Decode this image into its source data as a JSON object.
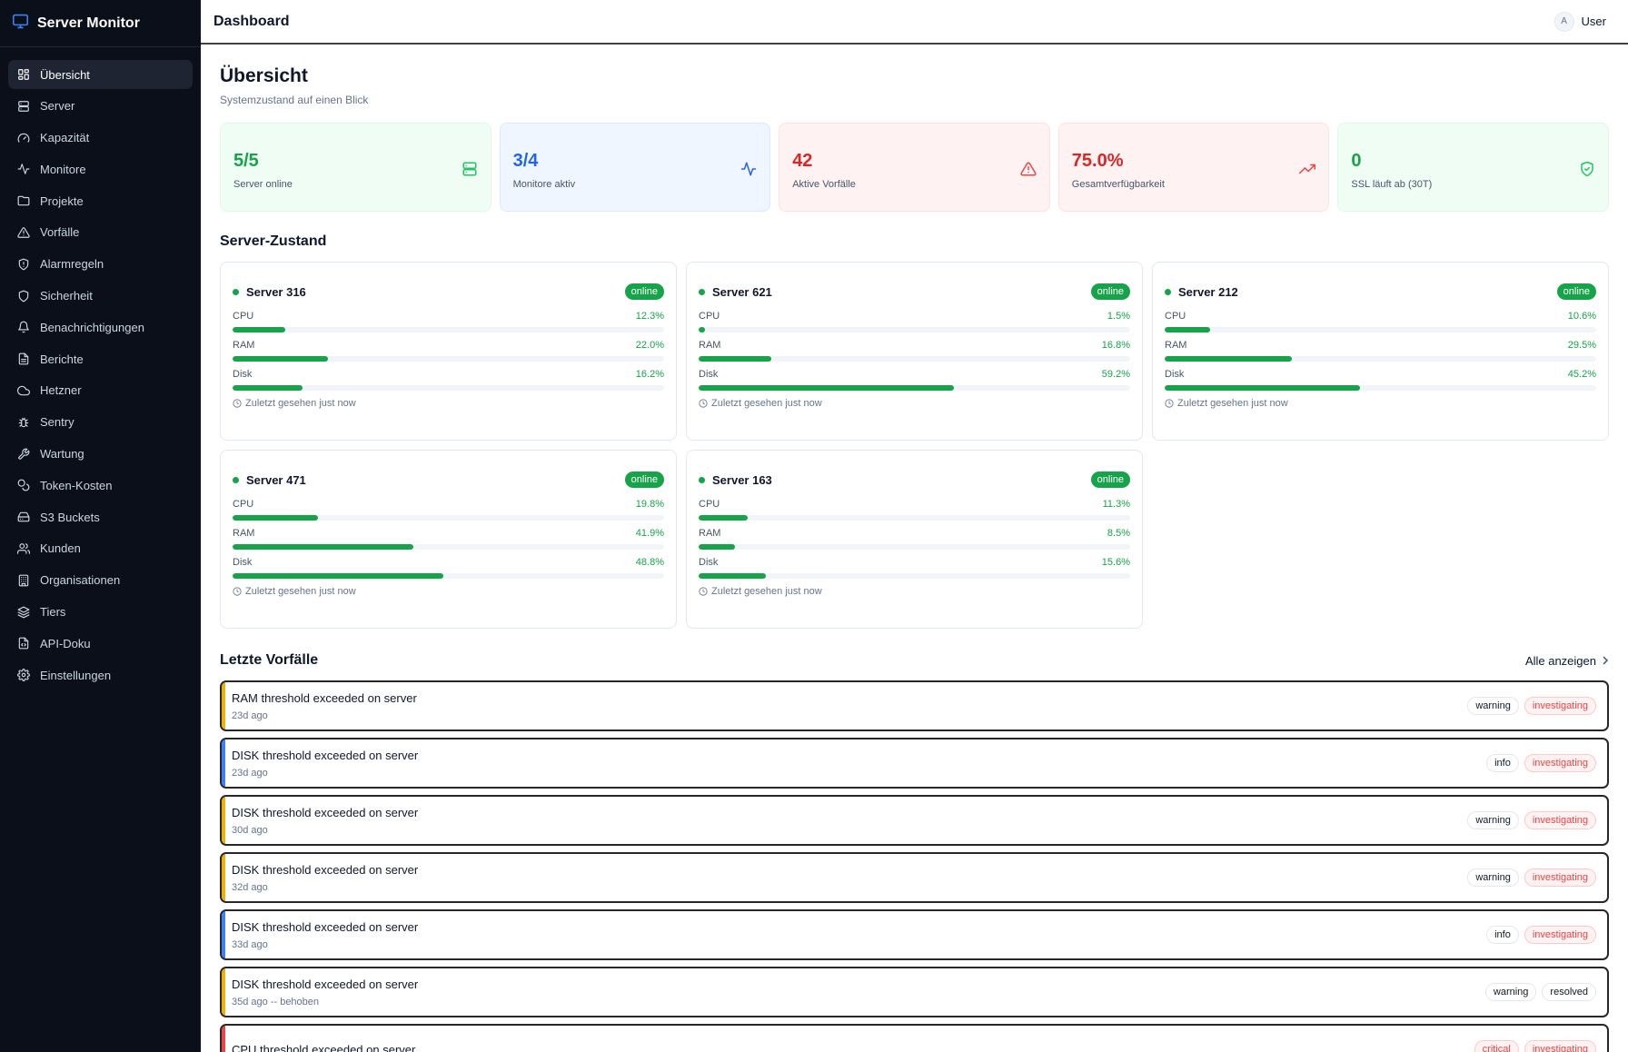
{
  "app": {
    "title": "Server Monitor"
  },
  "sidebar": {
    "items": [
      {
        "label": "Übersicht",
        "icon": "grid-icon",
        "active": true
      },
      {
        "label": "Server",
        "icon": "server-icon"
      },
      {
        "label": "Kapazität",
        "icon": "gauge-icon"
      },
      {
        "label": "Monitore",
        "icon": "activity-icon"
      },
      {
        "label": "Projekte",
        "icon": "folder-icon"
      },
      {
        "label": "Vorfälle",
        "icon": "alert-triangle-icon"
      },
      {
        "label": "Alarmregeln",
        "icon": "shield-alert-icon"
      },
      {
        "label": "Sicherheit",
        "icon": "shield-icon"
      },
      {
        "label": "Benachrichtigungen",
        "icon": "bell-icon"
      },
      {
        "label": "Berichte",
        "icon": "file-text-icon"
      },
      {
        "label": "Hetzner",
        "icon": "cloud-icon"
      },
      {
        "label": "Sentry",
        "icon": "bug-icon"
      },
      {
        "label": "Wartung",
        "icon": "wrench-icon"
      },
      {
        "label": "Token-Kosten",
        "icon": "coins-icon"
      },
      {
        "label": "S3 Buckets",
        "icon": "hard-drive-icon"
      },
      {
        "label": "Kunden",
        "icon": "users-icon"
      },
      {
        "label": "Organisationen",
        "icon": "building-icon"
      },
      {
        "label": "Tiers",
        "icon": "layers-icon"
      },
      {
        "label": "API-Doku",
        "icon": "file-code-icon"
      },
      {
        "label": "Einstellungen",
        "icon": "settings-icon"
      }
    ]
  },
  "topbar": {
    "title": "Dashboard",
    "user_initial": "A",
    "user_name": "User"
  },
  "page": {
    "title": "Übersicht",
    "subtitle": "Systemzustand auf einen Blick"
  },
  "stats": [
    {
      "value": "5/5",
      "label": "Server online",
      "variant": "green",
      "icon": "server-icon"
    },
    {
      "value": "3/4",
      "label": "Monitore aktiv",
      "variant": "blue",
      "icon": "activity-icon"
    },
    {
      "value": "42",
      "label": "Aktive Vorfälle",
      "variant": "red",
      "icon": "alert-triangle-icon"
    },
    {
      "value": "75.0%",
      "label": "Gesamtverfügbarkeit",
      "variant": "red",
      "icon": "trending-up-icon"
    },
    {
      "value": "0",
      "label": "SSL läuft ab (30T)",
      "variant": "green",
      "icon": "shield-check-icon"
    }
  ],
  "server_section": {
    "title": "Server-Zustand"
  },
  "servers": [
    {
      "name": "Server 316",
      "status": "online",
      "cpu_label": "CPU",
      "cpu": "12.3%",
      "ram_label": "RAM",
      "ram": "22.0%",
      "disk_label": "Disk",
      "disk": "16.2%",
      "seen": "Zuletzt gesehen just now"
    },
    {
      "name": "Server 621",
      "status": "online",
      "cpu_label": "CPU",
      "cpu": "1.5%",
      "ram_label": "RAM",
      "ram": "16.8%",
      "disk_label": "Disk",
      "disk": "59.2%",
      "seen": "Zuletzt gesehen just now"
    },
    {
      "name": "Server 212",
      "status": "online",
      "cpu_label": "CPU",
      "cpu": "10.6%",
      "ram_label": "RAM",
      "ram": "29.5%",
      "disk_label": "Disk",
      "disk": "45.2%",
      "seen": "Zuletzt gesehen just now"
    },
    {
      "name": "Server 471",
      "status": "online",
      "cpu_label": "CPU",
      "cpu": "19.8%",
      "ram_label": "RAM",
      "ram": "41.9%",
      "disk_label": "Disk",
      "disk": "48.8%",
      "seen": "Zuletzt gesehen just now"
    },
    {
      "name": "Server 163",
      "status": "online",
      "cpu_label": "CPU",
      "cpu": "11.3%",
      "ram_label": "RAM",
      "ram": "8.5%",
      "disk_label": "Disk",
      "disk": "15.6%",
      "seen": "Zuletzt gesehen just now"
    }
  ],
  "incidents_section": {
    "title": "Letzte Vorfälle",
    "link": "Alle anzeigen"
  },
  "incidents": [
    {
      "title": "RAM threshold exceeded on server",
      "time": "23d ago",
      "severity": "warning",
      "status": "investigating"
    },
    {
      "title": "DISK threshold exceeded on server",
      "time": "23d ago",
      "severity": "info",
      "status": "investigating"
    },
    {
      "title": "DISK threshold exceeded on server",
      "time": "30d ago",
      "severity": "warning",
      "status": "investigating"
    },
    {
      "title": "DISK threshold exceeded on server",
      "time": "32d ago",
      "severity": "warning",
      "status": "investigating"
    },
    {
      "title": "DISK threshold exceeded on server",
      "time": "33d ago",
      "severity": "info",
      "status": "investigating"
    },
    {
      "title": "DISK threshold exceeded on server",
      "time": "35d ago -- behoben",
      "severity": "warning",
      "status": "resolved"
    },
    {
      "title": "CPU threshold exceeded on server",
      "time": "",
      "severity": "critical",
      "status": "investigating"
    }
  ],
  "colors": {
    "sidebar_bg": "#0b0f1a",
    "green": "#16a34a",
    "blue": "#2563eb",
    "red": "#dc2626",
    "warning": "#eab308",
    "info": "#3b82f6",
    "critical": "#ef4444"
  }
}
